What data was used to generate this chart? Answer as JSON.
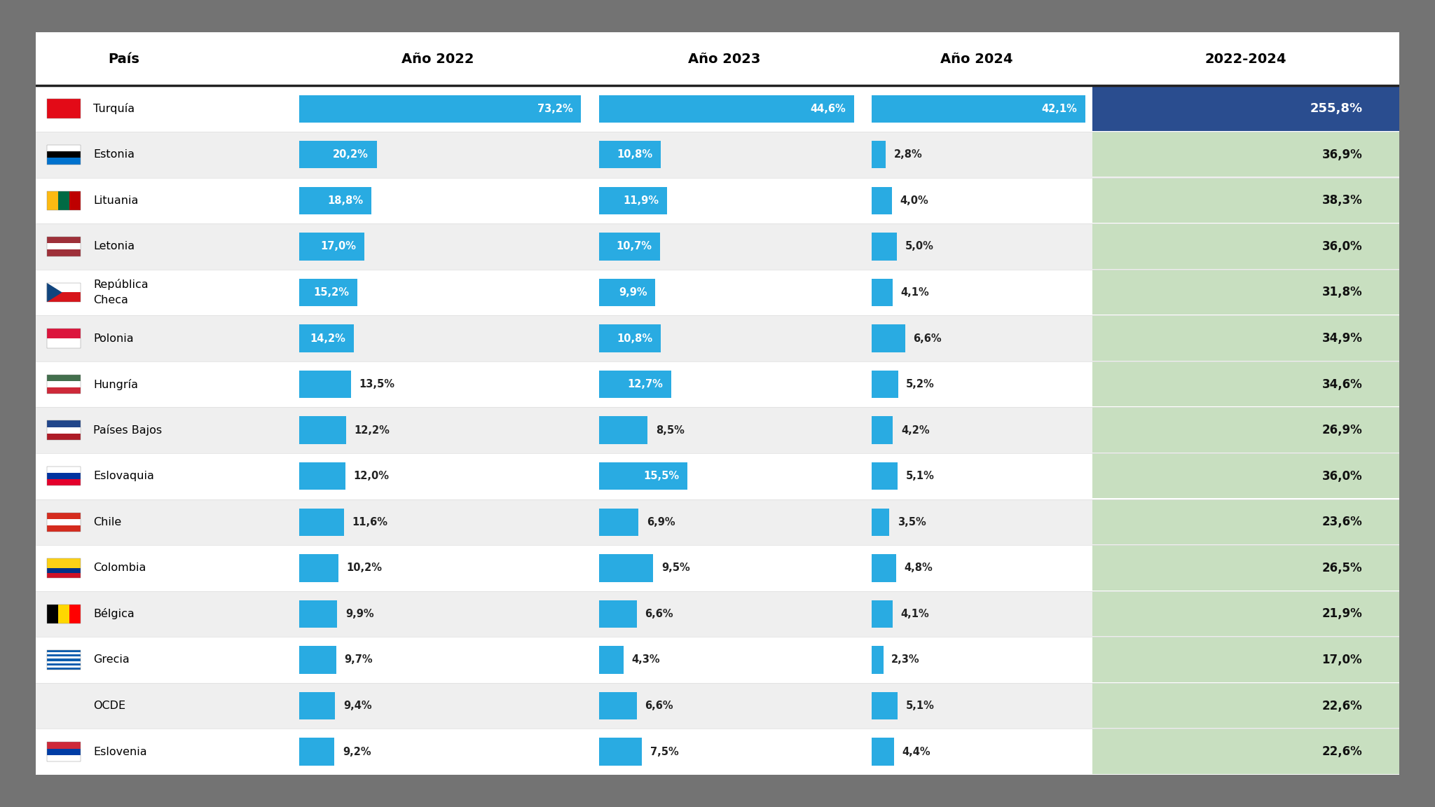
{
  "countries": [
    "Turquía",
    "Estonia",
    "Lituania",
    "Letonia",
    "República\nCheca",
    "Polonia",
    "Hungría",
    "Países Bajos",
    "Eslovaquia",
    "Chile",
    "Colombia",
    "Bélgica",
    "Grecia",
    "OCDE",
    "Eslovenia"
  ],
  "val2022": [
    73.2,
    20.2,
    18.8,
    17.0,
    15.2,
    14.2,
    13.5,
    12.2,
    12.0,
    11.6,
    10.2,
    9.9,
    9.7,
    9.4,
    9.2
  ],
  "val2023": [
    44.6,
    10.8,
    11.9,
    10.7,
    9.9,
    10.8,
    12.7,
    8.5,
    15.5,
    6.9,
    9.5,
    6.6,
    4.3,
    6.6,
    7.5
  ],
  "val2024": [
    42.1,
    2.8,
    4.0,
    5.0,
    4.1,
    6.6,
    5.2,
    4.2,
    5.1,
    3.5,
    4.8,
    4.1,
    2.3,
    5.1,
    4.4
  ],
  "labels2022": [
    "73,2%",
    "20,2%",
    "18,8%",
    "17,0%",
    "15,2%",
    "14,2%",
    "13,5%",
    "12,2%",
    "12,0%",
    "11,6%",
    "10,2%",
    "9,9%",
    "9,7%",
    "9,4%",
    "9,2%"
  ],
  "labels2023": [
    "44,6%",
    "10,8%",
    "11,9%",
    "10,7%",
    "9,9%",
    "10,8%",
    "12,7%",
    "8,5%",
    "15,5%",
    "6,9%",
    "9,5%",
    "6,6%",
    "4,3%",
    "6,6%",
    "7,5%"
  ],
  "labels2024": [
    "42,1%",
    "2,8%",
    "4,0%",
    "5,0%",
    "4,1%",
    "6,6%",
    "5,2%",
    "4,2%",
    "5,1%",
    "3,5%",
    "4,8%",
    "4,1%",
    "2,3%",
    "5,1%",
    "4,4%"
  ],
  "labels_total": [
    "255,8%",
    "36,9%",
    "38,3%",
    "36,0%",
    "31,8%",
    "34,9%",
    "34,6%",
    "26,9%",
    "36,0%",
    "23,6%",
    "26,5%",
    "21,9%",
    "17,0%",
    "22,6%",
    "22,6%"
  ],
  "bar_color": "#29ABE2",
  "total_color_turkey": "#2A4D8F",
  "total_bg_green": "#C8DFC0",
  "col_headers": [
    "País",
    "Año 2022",
    "Año 2023",
    "Año 2024",
    "2022-2024"
  ],
  "has_flag": [
    true,
    true,
    true,
    true,
    true,
    true,
    true,
    true,
    true,
    true,
    true,
    true,
    true,
    false,
    true
  ],
  "flag_colors": [
    [
      [
        "#E30A17",
        "#E30A17"
      ],
      "turkey"
    ],
    [
      [
        "#0072CE",
        "#000000",
        "#0072CE"
      ],
      "estonia"
    ],
    [
      [
        "#FDBA12",
        "#006A44",
        "#BE0000"
      ],
      "lithuania"
    ],
    [
      [
        "#9E3039",
        "#FFFFFF",
        "#9E3039"
      ],
      "latvia"
    ],
    [
      [
        "#D7141A",
        "#FFFFFF",
        "#003DA5"
      ],
      "czech"
    ],
    [
      [
        "#DC143C",
        "#FFFFFF",
        "#DC143C"
      ],
      "poland"
    ],
    [
      [
        "#CE2939",
        "#FFFFFF",
        "#436F4D",
        "#FFFFFF",
        "#CE2939"
      ],
      "hungary"
    ],
    [
      [
        "#AE1C28",
        "#FFFFFF",
        "#21468B"
      ],
      "netherlands"
    ],
    [
      [
        "#FFFFFF",
        "#003DA5",
        "#FFFFFF"
      ],
      "slovakia"
    ],
    [
      [
        "#D52B1E",
        "#FFFFFF",
        "#D52B1E"
      ],
      "chile"
    ],
    [
      [
        "#FCD116",
        "#003087",
        "#CE1126"
      ],
      "colombia"
    ],
    [
      [
        "#000000",
        "#FFD700",
        "#FF0000"
      ],
      "belgium"
    ],
    [
      [
        "#0D5EAF",
        "#FFFFFF",
        "#0D5EAF"
      ],
      "greece"
    ],
    [
      [],
      "none"
    ],
    [
      [
        "#003DA5",
        "#FFFFFF",
        "#003DA5",
        "#FFFFFF",
        "#CE2939"
      ],
      "slovenia"
    ]
  ],
  "background_outer": "#737373",
  "row_colors": [
    "#FFFFFF",
    "#EFEFEF"
  ],
  "header_line_color": "#333333",
  "max_bar_2022": 73.2,
  "max_bar_2023": 44.6,
  "max_bar_2024": 42.1
}
